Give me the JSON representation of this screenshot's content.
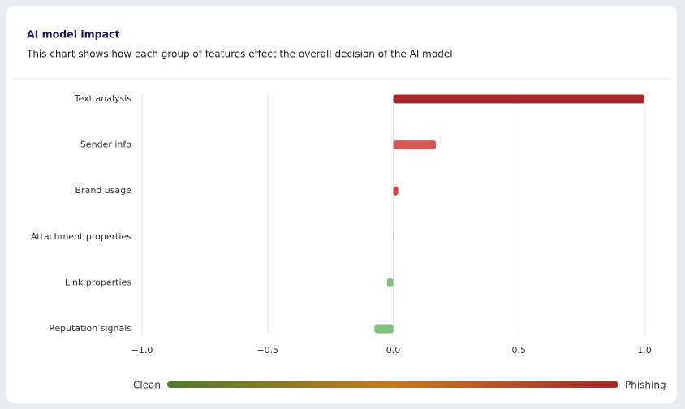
{
  "chart_data": {
    "type": "hbar",
    "title": "AI model impact",
    "subtitle": "This chart shows how each group of features effect the overall decision of the AI model",
    "categories": [
      "Text analysis",
      "Sender info",
      "Brand usage",
      "Attachment properties",
      "Link properties",
      "Reputation signals"
    ],
    "values": [
      1.0,
      0.17,
      0.02,
      0.003,
      -0.025,
      -0.075
    ],
    "colors": [
      "#a4282c",
      "#d45a5a",
      "#c94848",
      "#8cc98a",
      "#7fc27c",
      "#7fc27c"
    ],
    "xlim": [
      -1.0,
      1.0
    ],
    "xticks": [
      {
        "value": -1.0,
        "label": "−1.0"
      },
      {
        "value": -0.5,
        "label": "−0.5"
      },
      {
        "value": 0,
        "label": "0.0"
      },
      {
        "value": 0.5,
        "label": "0.5"
      },
      {
        "value": 1.0,
        "label": "1.0"
      }
    ],
    "grid": true,
    "legend": {
      "left": "Clean",
      "right": "Phishing"
    }
  }
}
